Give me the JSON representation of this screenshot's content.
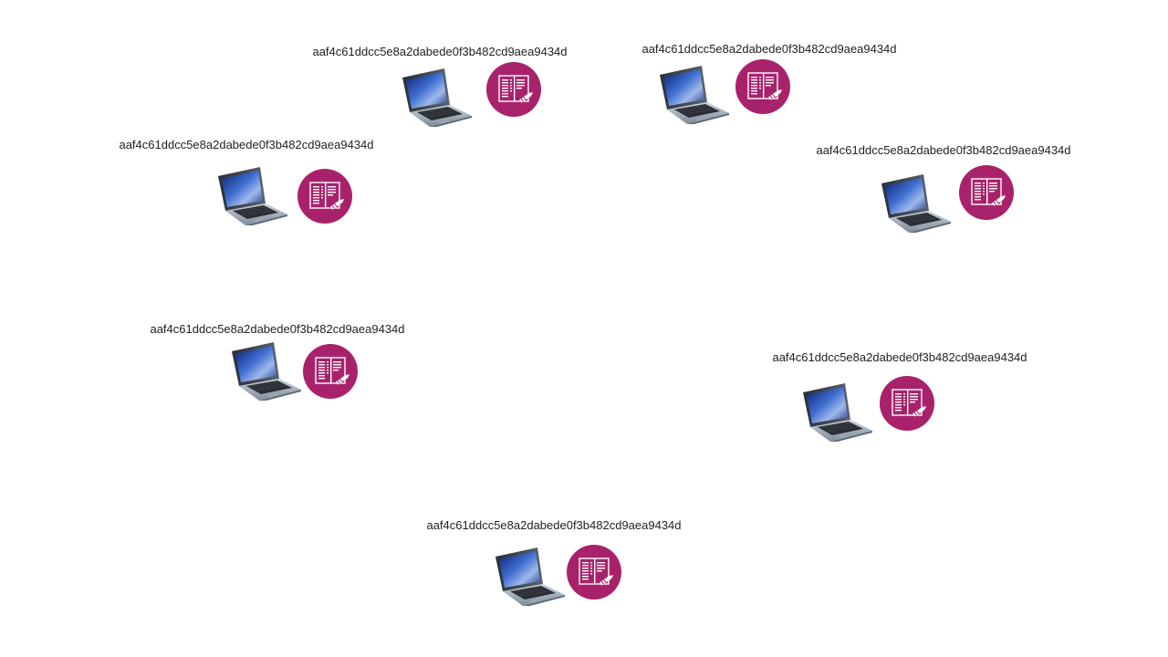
{
  "diagram": {
    "nodes": [
      {
        "id": "node-1",
        "label": "aaf4c61ddcc5e8a2dabede0f3b482cd9aea9434d",
        "laptop_icon": "laptop-icon",
        "badge_icon": "log-document-icon"
      },
      {
        "id": "node-2",
        "label": "aaf4c61ddcc5e8a2dabede0f3b482cd9aea9434d",
        "laptop_icon": "laptop-icon",
        "badge_icon": "log-document-icon"
      },
      {
        "id": "node-3",
        "label": "aaf4c61ddcc5e8a2dabede0f3b482cd9aea9434d",
        "laptop_icon": "laptop-icon",
        "badge_icon": "log-document-icon"
      },
      {
        "id": "node-4",
        "label": "aaf4c61ddcc5e8a2dabede0f3b482cd9aea9434d",
        "laptop_icon": "laptop-icon",
        "badge_icon": "log-document-icon"
      },
      {
        "id": "node-5",
        "label": "aaf4c61ddcc5e8a2dabede0f3b482cd9aea9434d",
        "laptop_icon": "laptop-icon",
        "badge_icon": "log-document-icon"
      },
      {
        "id": "node-6",
        "label": "aaf4c61ddcc5e8a2dabede0f3b482cd9aea9434d",
        "laptop_icon": "laptop-icon",
        "badge_icon": "log-document-icon"
      },
      {
        "id": "node-7",
        "label": "aaf4c61ddcc5e8a2dabede0f3b482cd9aea9434d",
        "laptop_icon": "laptop-icon",
        "badge_icon": "log-document-icon"
      }
    ],
    "colors": {
      "badge": "#a8226b",
      "label_text": "#222222",
      "background": "#ffffff"
    }
  }
}
